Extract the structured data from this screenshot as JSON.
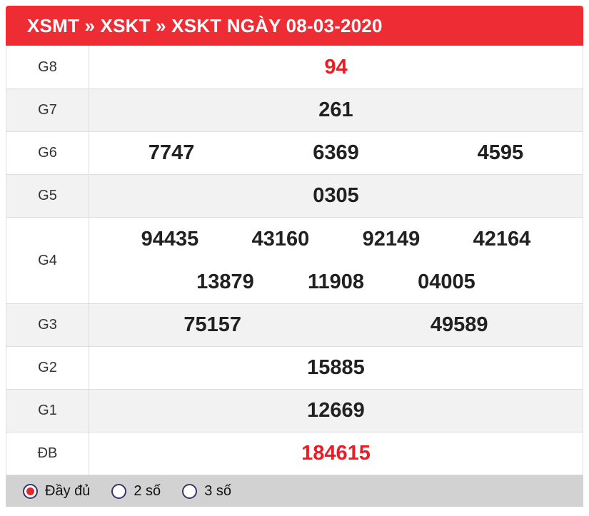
{
  "header": {
    "title": "XSMT » XSKT » XSKT NGÀY 08-03-2020"
  },
  "results": {
    "rows": [
      {
        "label": "G8",
        "numbers": [
          "94"
        ],
        "highlight": true
      },
      {
        "label": "G7",
        "numbers": [
          "261"
        ],
        "highlight": false
      },
      {
        "label": "G6",
        "numbers": [
          "7747",
          "6369",
          "4595"
        ],
        "highlight": false
      },
      {
        "label": "G5",
        "numbers": [
          "0305"
        ],
        "highlight": false
      },
      {
        "label": "G4",
        "numbers": [
          "94435",
          "43160",
          "92149",
          "42164",
          "13879",
          "11908",
          "04005"
        ],
        "highlight": false
      },
      {
        "label": "G3",
        "numbers": [
          "75157",
          "49589"
        ],
        "highlight": false
      },
      {
        "label": "G2",
        "numbers": [
          "15885"
        ],
        "highlight": false
      },
      {
        "label": "G1",
        "numbers": [
          "12669"
        ],
        "highlight": false
      },
      {
        "label": "ĐB",
        "numbers": [
          "184615"
        ],
        "highlight": true
      }
    ]
  },
  "footer": {
    "options": [
      {
        "label": "Đầy đủ",
        "selected": true
      },
      {
        "label": "2 số",
        "selected": false
      },
      {
        "label": "3 số",
        "selected": false
      }
    ]
  },
  "colors": {
    "header_background": "#ee2c34",
    "header_text": "#ffffff",
    "highlight_number": "#ed1c24",
    "number": "#212121",
    "alt_row_background": "#f2f2f2",
    "footer_background": "#d2d2d2",
    "radio_border": "#35356b",
    "radio_dot": "#e8262e",
    "table_border": "#dddddd"
  }
}
